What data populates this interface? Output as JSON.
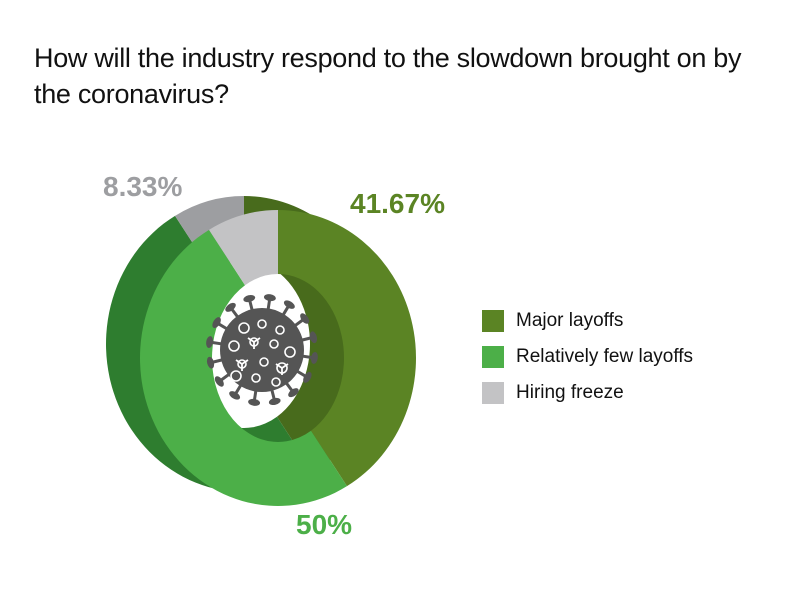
{
  "colors": {
    "major_top": "#5b8424",
    "major_side": "#486b1c",
    "few_top": "#4caf48",
    "few_side": "#2e7d2f",
    "freeze_top": "#c3c3c5",
    "freeze_side": "#9d9ea1",
    "virus_body": "#555555",
    "virus_detail": "#ffffff"
  },
  "chart_data": {
    "type": "pie",
    "title": "How will the industry respond to the slowdown brought on by the coronavirus?",
    "labels": [
      "Major layoffs",
      "Relatively few layoffs",
      "Hiring freeze"
    ],
    "values": [
      41.67,
      50,
      8.33
    ],
    "data_labels": [
      "41.67%",
      "50%",
      "8.33%"
    ],
    "legend_position": "right",
    "style": "3D donut"
  },
  "center_icon": "coronavirus-icon"
}
